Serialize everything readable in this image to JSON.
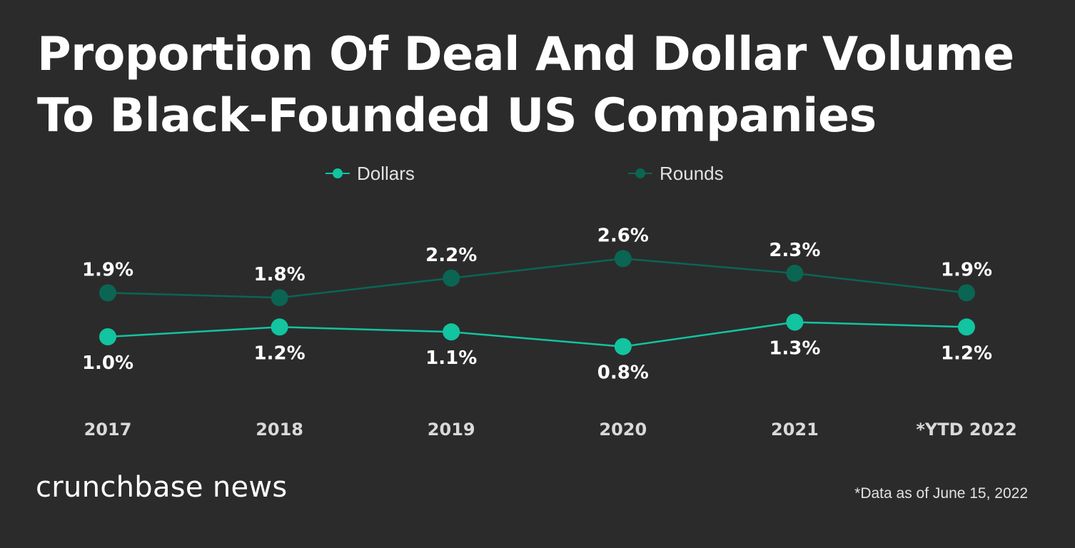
{
  "header": {
    "title_line1": "Proportion Of Deal And Dollar Volume",
    "title_line2": "To Black-Founded US Companies"
  },
  "chart_data": {
    "type": "line",
    "title": "Proportion Of Deal And Dollar Volume To Black-Founded US Companies",
    "categories": [
      "2017",
      "2018",
      "2019",
      "2020",
      "2021",
      "*YTD 2022"
    ],
    "series": [
      {
        "name": "Dollars",
        "color": "#12c4a0",
        "values": [
          1.0,
          1.2,
          1.1,
          0.8,
          1.3,
          1.2
        ],
        "labels": [
          "1.0%",
          "1.2%",
          "1.1%",
          "0.8%",
          "1.3%",
          "1.2%"
        ]
      },
      {
        "name": "Rounds",
        "color": "#0b6553",
        "values": [
          1.9,
          1.8,
          2.2,
          2.6,
          2.3,
          1.9
        ],
        "labels": [
          "1.9%",
          "1.8%",
          "2.2%",
          "2.6%",
          "2.3%",
          "1.9%"
        ]
      }
    ],
    "xlabel": "",
    "ylabel": "",
    "yaxis_visible": false,
    "grid": false,
    "legend_position": "top-center",
    "data_label_format": "percent"
  },
  "footer": {
    "brand": "crunchbase news",
    "note": "*Data as of June 15, 2022"
  }
}
